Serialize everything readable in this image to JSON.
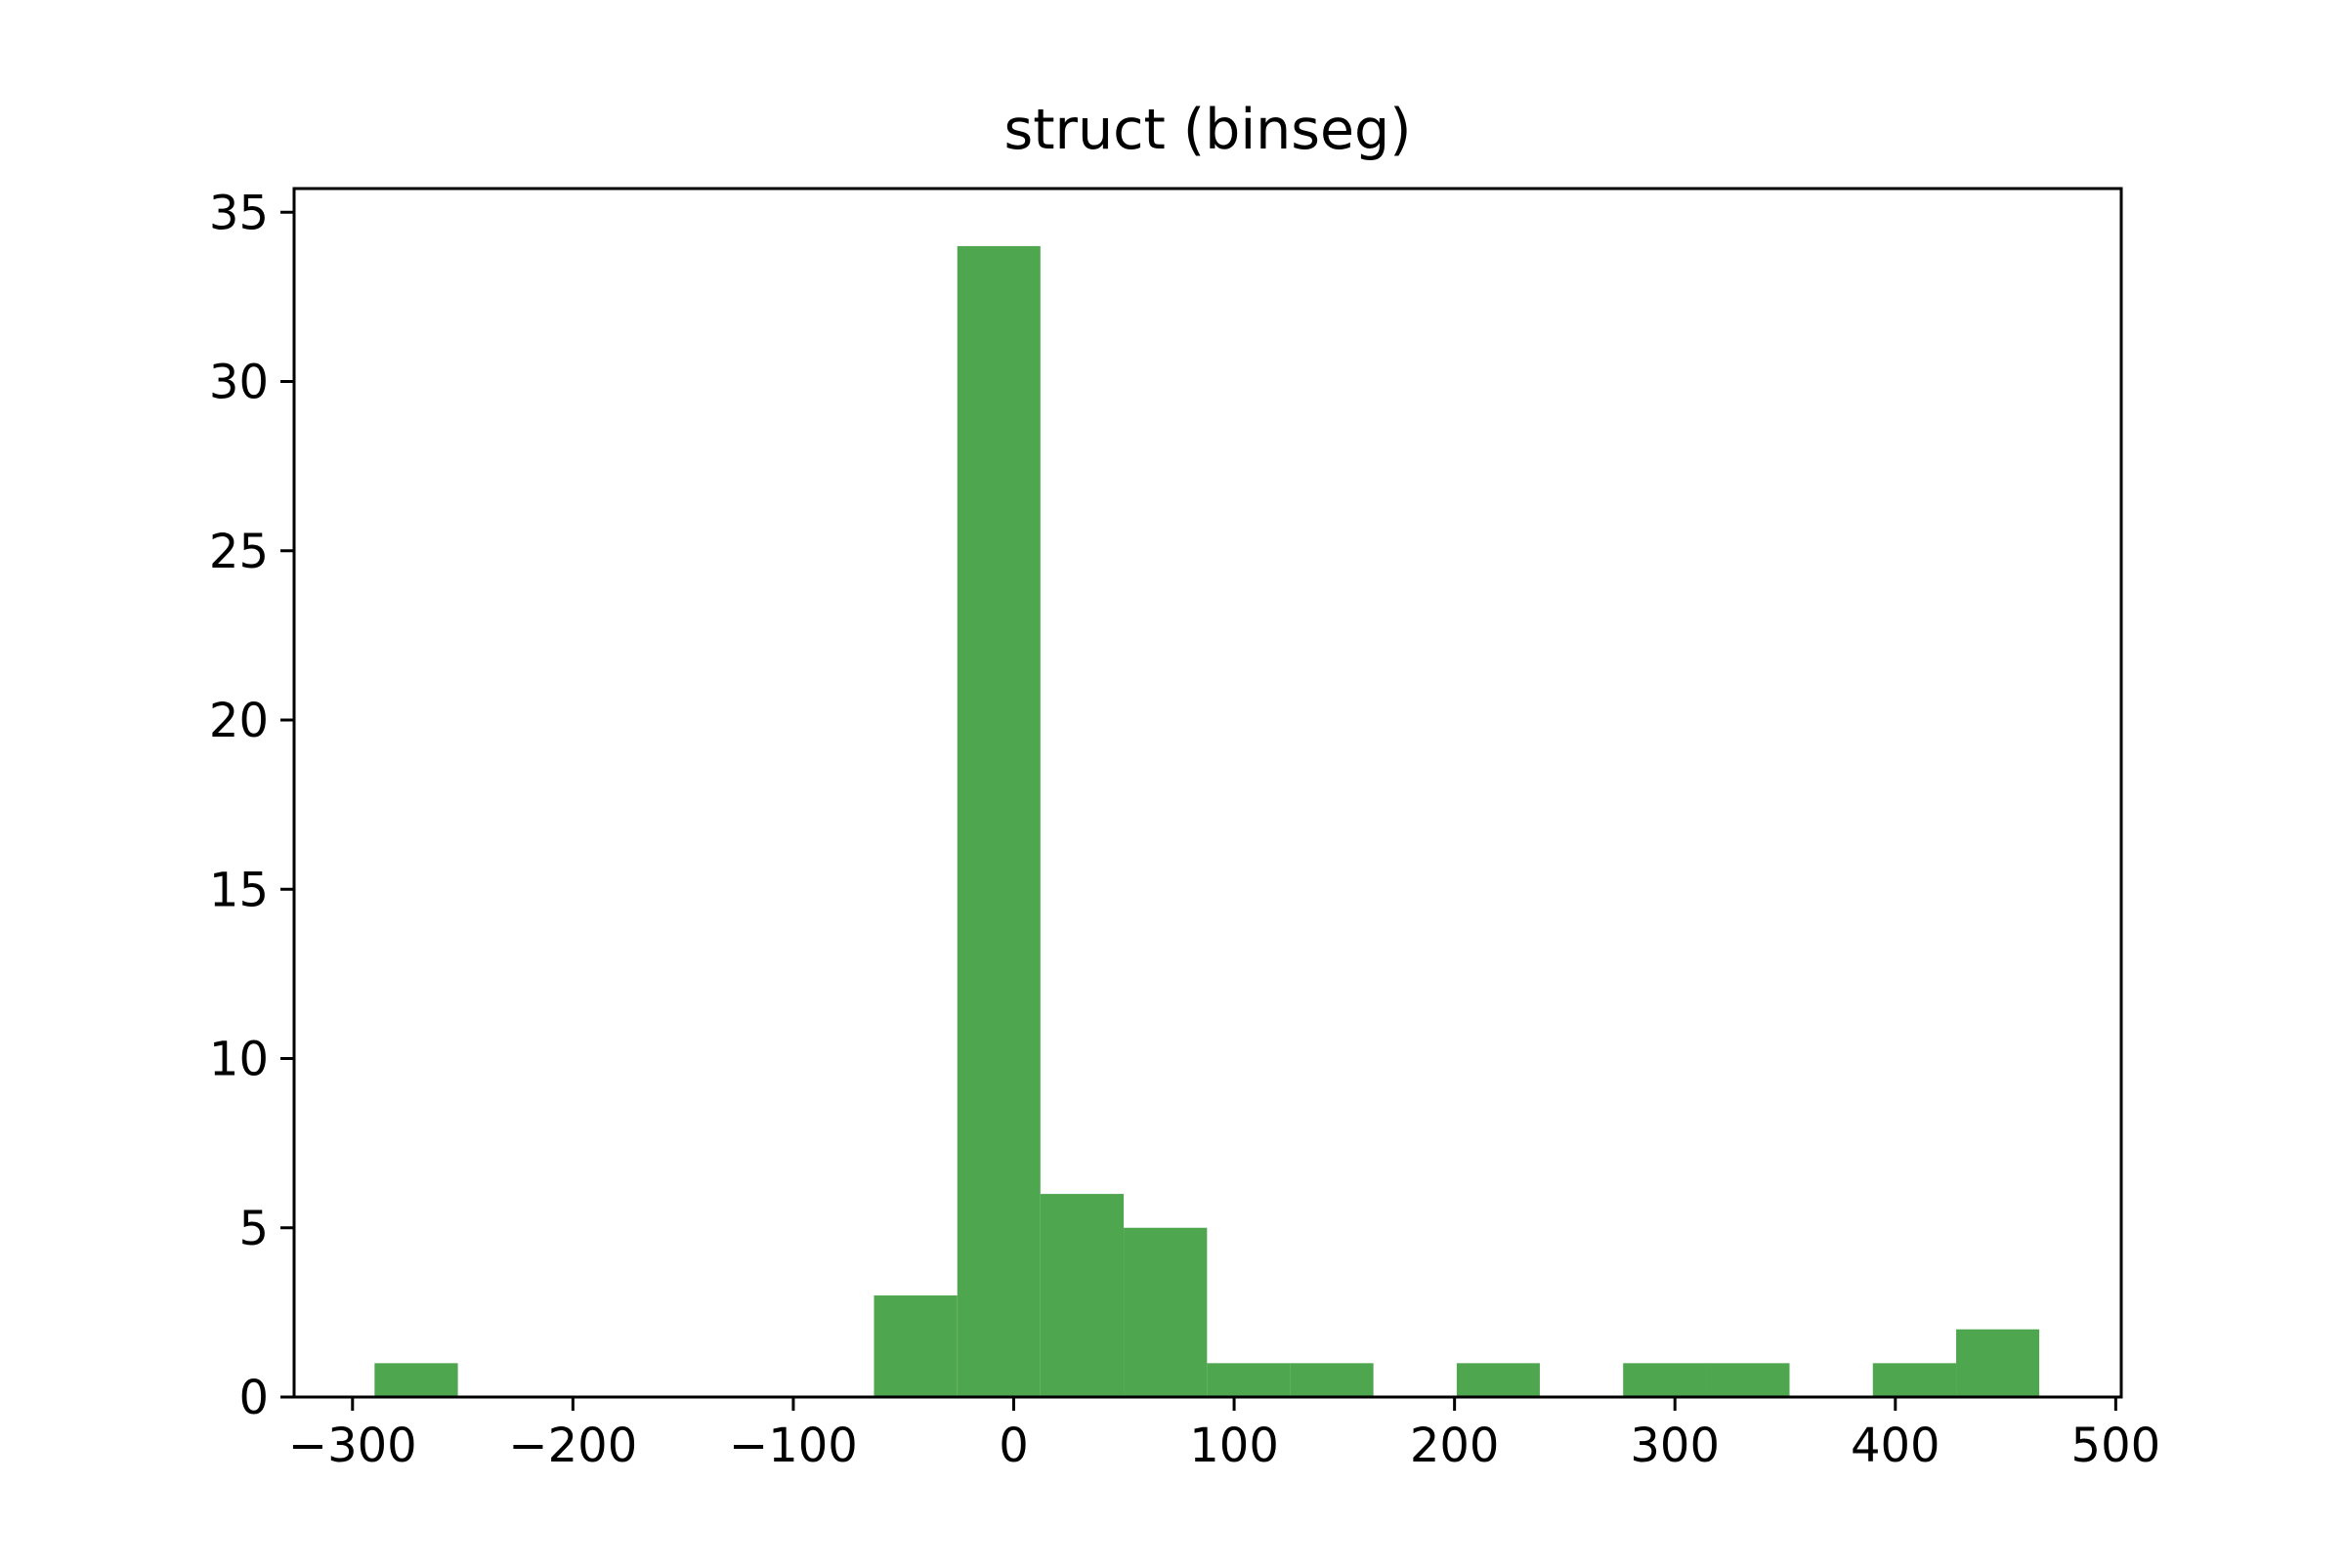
{
  "chart_data": {
    "type": "bar",
    "title": "struct (binseg)",
    "xlabel": "",
    "ylabel": "",
    "xlim": [
      -326.5,
      502.5
    ],
    "ylim": [
      0,
      35.7
    ],
    "x_ticks": [
      -300,
      -200,
      -100,
      0,
      100,
      200,
      300,
      400,
      500
    ],
    "x_tick_labels": [
      "−300",
      "−200",
      "−100",
      "0",
      "100",
      "200",
      "300",
      "400",
      "500"
    ],
    "y_ticks": [
      0,
      5,
      10,
      15,
      20,
      25,
      30,
      35
    ],
    "y_tick_labels": [
      "0",
      "5",
      "10",
      "15",
      "20",
      "25",
      "30",
      "35"
    ],
    "bin_edges": [
      -290.0,
      -252.2,
      -214.5,
      -176.7,
      -138.9,
      -101.2,
      -63.4,
      -25.6,
      12.1,
      49.9,
      87.7,
      125.4,
      163.2,
      201.0,
      238.7,
      276.5,
      314.3,
      352.0,
      389.8,
      427.6,
      465.3
    ],
    "values": [
      1,
      0,
      0,
      0,
      0,
      0,
      3,
      34,
      6,
      5,
      1,
      1,
      0,
      1,
      0,
      1,
      1,
      0,
      1,
      2
    ],
    "bar_color": "#4ea64e",
    "grid": false
  }
}
